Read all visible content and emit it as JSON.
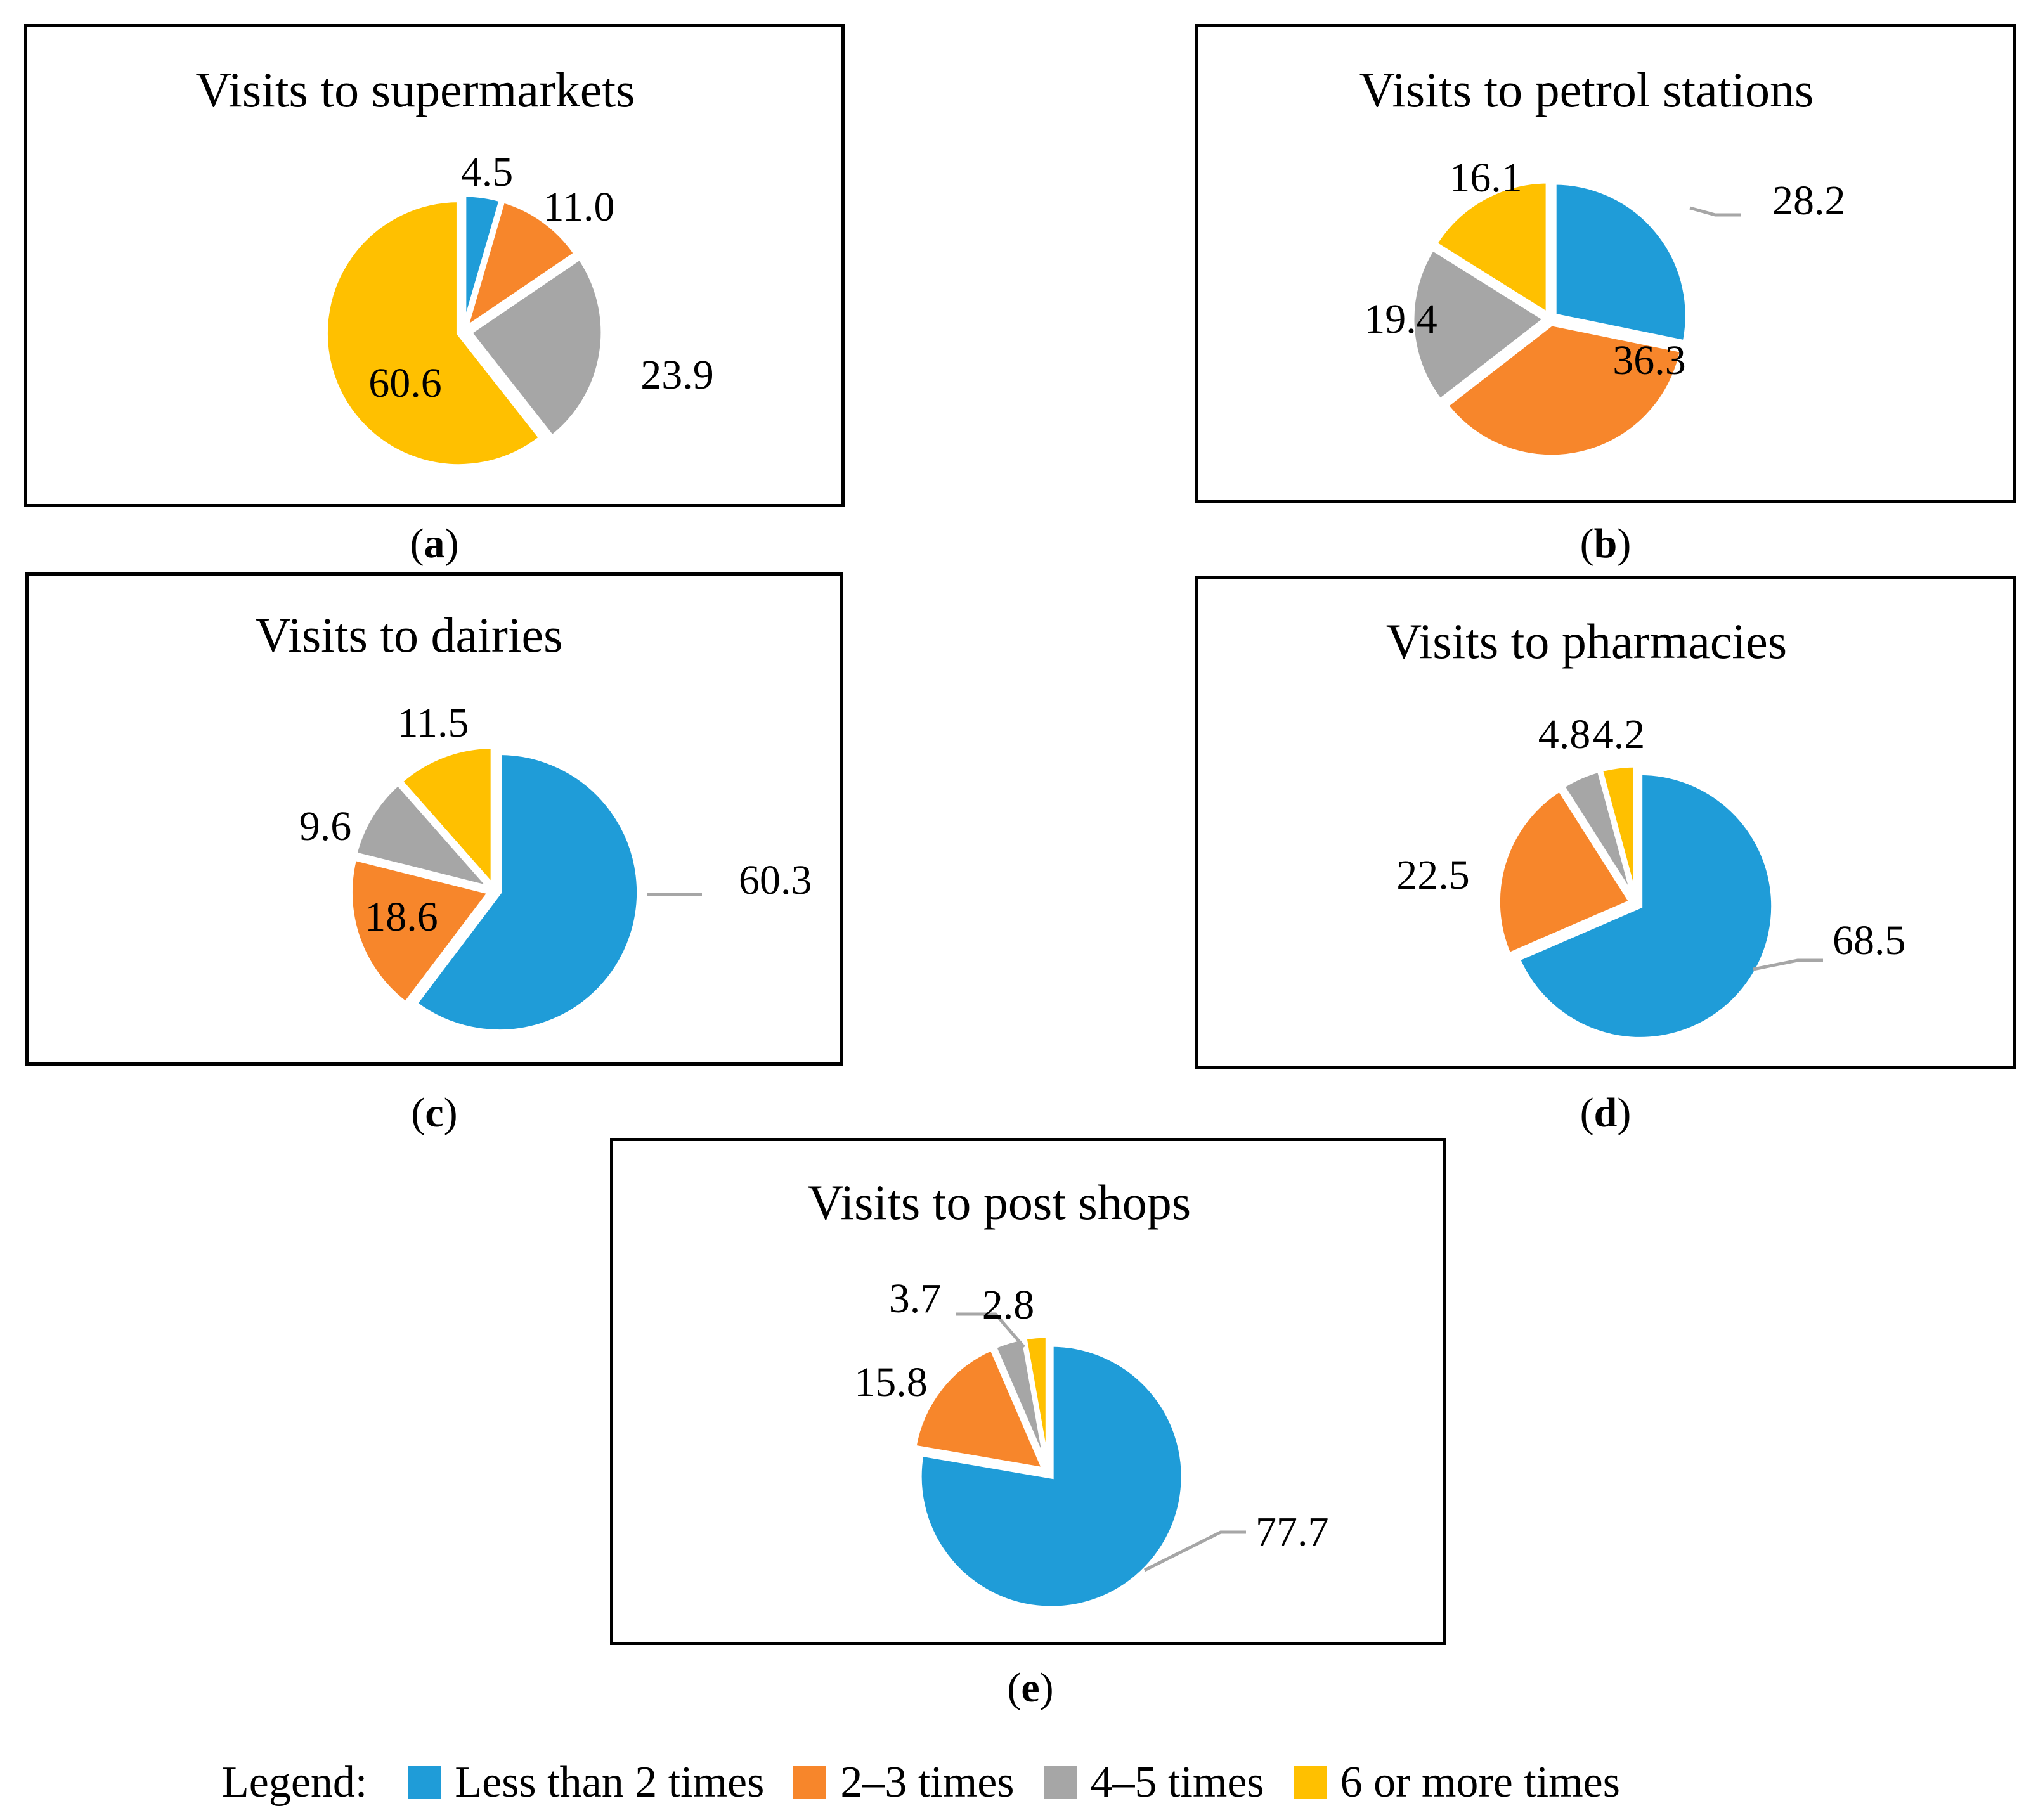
{
  "colors": {
    "less_than_2": "#1F9CD8",
    "two_three": "#F7862B",
    "four_five": "#A6A6A6",
    "six_more": "#FFC000"
  },
  "panels": [
    {
      "id": "a",
      "title": "Visits to supermarkets",
      "caption_open": "(",
      "caption_letter": "a",
      "caption_close": ")"
    },
    {
      "id": "b",
      "title": "Visits to petrol stations",
      "caption_open": "(",
      "caption_letter": "b",
      "caption_close": ")"
    },
    {
      "id": "c",
      "title": "Visits to dairies",
      "caption_open": "(",
      "caption_letter": "c",
      "caption_close": ")"
    },
    {
      "id": "d",
      "title": "Visits to pharmacies",
      "caption_open": "(",
      "caption_letter": "d",
      "caption_close": ")"
    },
    {
      "id": "e",
      "title": "Visits to post shops",
      "caption_open": "(",
      "caption_letter": "e",
      "caption_close": ")"
    }
  ],
  "legend": {
    "title": "Legend:",
    "items": [
      {
        "label": "Less than 2 times",
        "color": "#1F9CD8"
      },
      {
        "label": "2–3 times",
        "color": "#F7862B"
      },
      {
        "label": "4–5 times",
        "color": "#A6A6A6"
      },
      {
        "label": "6 or more times",
        "color": "#FFC000"
      }
    ]
  },
  "chart_data": [
    {
      "type": "pie",
      "title": "Visits to supermarkets",
      "categories": [
        "Less than 2 times",
        "2–3 times",
        "4–5 times",
        "6 or more times"
      ],
      "values": [
        4.5,
        11.0,
        23.9,
        60.6
      ],
      "labels": [
        "4.5",
        "11.0",
        "23.9",
        "60.6"
      ]
    },
    {
      "type": "pie",
      "title": "Visits to petrol stations",
      "categories": [
        "Less than 2 times",
        "2–3 times",
        "4–5 times",
        "6 or more times"
      ],
      "values": [
        28.2,
        36.3,
        19.4,
        16.1
      ],
      "labels": [
        "28.2",
        "36.3",
        "19.4",
        "16.1"
      ]
    },
    {
      "type": "pie",
      "title": "Visits to dairies",
      "categories": [
        "Less than 2 times",
        "2–3 times",
        "4–5 times",
        "6 or more times"
      ],
      "values": [
        60.3,
        18.6,
        9.6,
        11.5
      ],
      "labels": [
        "60.3",
        "18.6",
        "9.6",
        "11.5"
      ]
    },
    {
      "type": "pie",
      "title": "Visits to pharmacies",
      "categories": [
        "Less than 2 times",
        "2–3 times",
        "4–5 times",
        "6 or more times"
      ],
      "values": [
        68.5,
        22.5,
        4.8,
        4.2
      ],
      "labels": [
        "68.5",
        "22.5",
        "4.8",
        "4.2"
      ]
    },
    {
      "type": "pie",
      "title": "Visits to post shops",
      "categories": [
        "Less than 2 times",
        "2–3 times",
        "4–5 times",
        "6 or more times"
      ],
      "values": [
        77.7,
        15.8,
        3.7,
        2.8
      ],
      "labels": [
        "77.7",
        "15.8",
        "3.7",
        "2.8"
      ]
    }
  ]
}
